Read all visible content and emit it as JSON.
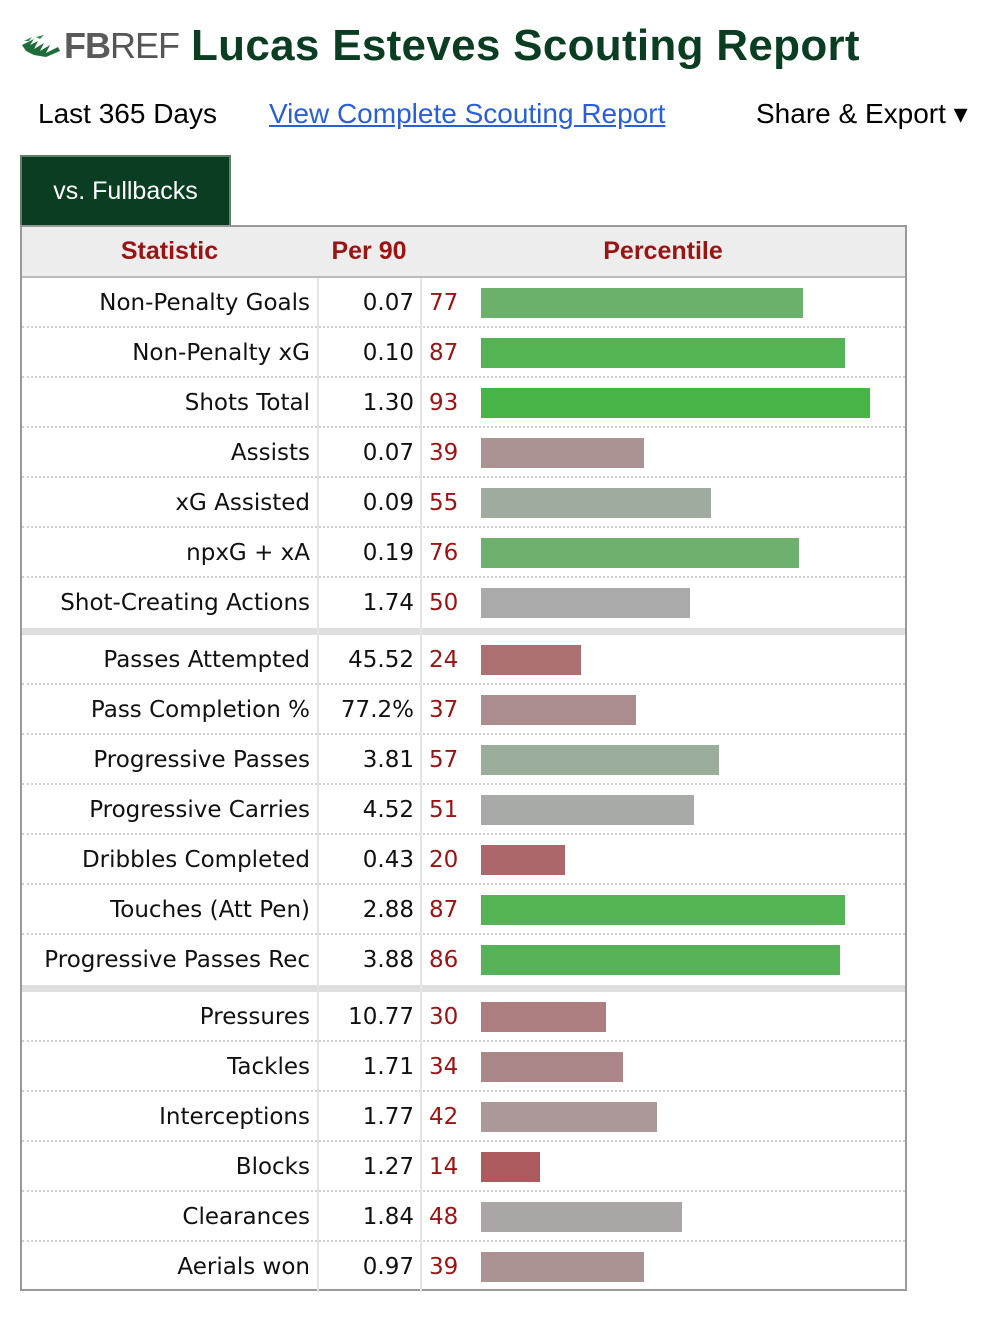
{
  "site": {
    "logo_bold": "FB",
    "logo_light": "REF"
  },
  "page_title": "Lucas Esteves Scouting Report",
  "subnav": {
    "period": "Last 365 Days",
    "complete_report_link": "View Complete Scouting Report",
    "share_export": "Share & Export ▾"
  },
  "tabs": [
    {
      "label": "vs. Fullbacks",
      "active": true
    }
  ],
  "table": {
    "headers": {
      "statistic": "Statistic",
      "per90": "Per 90",
      "percentile": "Percentile"
    },
    "groups": [
      [
        {
          "stat": "Non-Penalty Goals",
          "per90": "0.07",
          "percentile": 77
        },
        {
          "stat": "Non-Penalty xG",
          "per90": "0.10",
          "percentile": 87
        },
        {
          "stat": "Shots Total",
          "per90": "1.30",
          "percentile": 93
        },
        {
          "stat": "Assists",
          "per90": "0.07",
          "percentile": 39
        },
        {
          "stat": "xG Assisted",
          "per90": "0.09",
          "percentile": 55
        },
        {
          "stat": "npxG + xA",
          "per90": "0.19",
          "percentile": 76
        },
        {
          "stat": "Shot-Creating Actions",
          "per90": "1.74",
          "percentile": 50
        }
      ],
      [
        {
          "stat": "Passes Attempted",
          "per90": "45.52",
          "percentile": 24
        },
        {
          "stat": "Pass Completion %",
          "per90": "77.2%",
          "percentile": 37
        },
        {
          "stat": "Progressive Passes",
          "per90": "3.81",
          "percentile": 57
        },
        {
          "stat": "Progressive Carries",
          "per90": "4.52",
          "percentile": 51
        },
        {
          "stat": "Dribbles Completed",
          "per90": "0.43",
          "percentile": 20
        },
        {
          "stat": "Touches (Att Pen)",
          "per90": "2.88",
          "percentile": 87
        },
        {
          "stat": "Progressive Passes Rec",
          "per90": "3.88",
          "percentile": 86
        }
      ],
      [
        {
          "stat": "Pressures",
          "per90": "10.77",
          "percentile": 30
        },
        {
          "stat": "Tackles",
          "per90": "1.71",
          "percentile": 34
        },
        {
          "stat": "Interceptions",
          "per90": "1.77",
          "percentile": 42
        },
        {
          "stat": "Blocks",
          "per90": "1.27",
          "percentile": 14
        },
        {
          "stat": "Clearances",
          "per90": "1.84",
          "percentile": 48
        },
        {
          "stat": "Aerials won",
          "per90": "0.97",
          "percentile": 39
        }
      ]
    ]
  },
  "colors": {
    "brand_green": "#0a3d22",
    "header_red": "#9b1313",
    "link_blue": "#2a5fd6",
    "bar_low": "#ad5a5e",
    "bar_mid": "#aaaaaa",
    "bar_high": "#46b446"
  }
}
